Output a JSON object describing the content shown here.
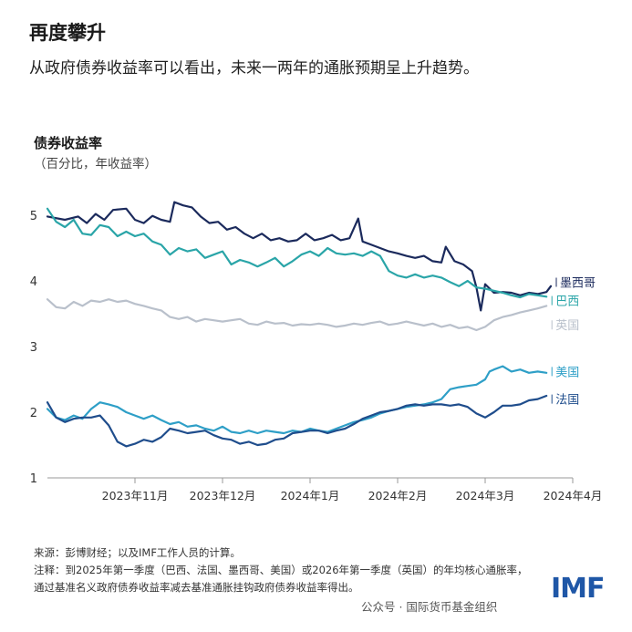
{
  "header": {
    "title": "再度攀升",
    "subtitle": "从政府债券收益率可以看出，未来一两年的通胀预期呈上升趋势。"
  },
  "panel": {
    "title": "债券收益率",
    "subtitle": "（百分比，年收益率）"
  },
  "footer": {
    "source": "来源：彭博财经；以及IMF工作人员的计算。",
    "note": "注释：到2025年第一季度（巴西、法国、墨西哥、美国）或2026年第一季度（英国）的年均核心通胀率，通过基准名义政府债券收益率减去基准通胀挂钩政府债券收益率得出。",
    "watermark": "公众号 · 国际货币基金组织",
    "logo": "IMF"
  },
  "chart_data": {
    "type": "line",
    "x_unit": "trading day index (Oct 2023 – Mar 2024)",
    "x_range": [
      0,
      120
    ],
    "ylim": [
      1,
      5
    ],
    "yticks": [
      1,
      2,
      3,
      4,
      5
    ],
    "xticks": [
      {
        "label": "2023年11月",
        "x": 20
      },
      {
        "label": "2023年12月",
        "x": 40
      },
      {
        "label": "2024年1月",
        "x": 60
      },
      {
        "label": "2024年2月",
        "x": 80
      },
      {
        "label": "2024年3月",
        "x": 100
      },
      {
        "label": "2024年4月",
        "x": 120
      }
    ],
    "grid": false,
    "series": [
      {
        "name": "墨西哥",
        "color": "#1b2a5c",
        "points": [
          [
            0,
            4.98
          ],
          [
            4,
            4.93
          ],
          [
            7,
            4.98
          ],
          [
            9,
            4.88
          ],
          [
            11,
            5.02
          ],
          [
            13,
            4.93
          ],
          [
            15,
            5.08
          ],
          [
            18,
            5.1
          ],
          [
            20,
            4.93
          ],
          [
            22,
            4.88
          ],
          [
            24,
            4.99
          ],
          [
            26,
            4.93
          ],
          [
            28,
            4.9
          ],
          [
            29,
            5.2
          ],
          [
            31,
            5.15
          ],
          [
            33,
            5.12
          ],
          [
            35,
            4.98
          ],
          [
            37,
            4.88
          ],
          [
            39,
            4.9
          ],
          [
            41,
            4.78
          ],
          [
            43,
            4.82
          ],
          [
            45,
            4.72
          ],
          [
            47,
            4.65
          ],
          [
            49,
            4.72
          ],
          [
            51,
            4.62
          ],
          [
            53,
            4.65
          ],
          [
            55,
            4.6
          ],
          [
            57,
            4.62
          ],
          [
            59,
            4.72
          ],
          [
            61,
            4.62
          ],
          [
            63,
            4.65
          ],
          [
            65,
            4.7
          ],
          [
            67,
            4.62
          ],
          [
            69,
            4.65
          ],
          [
            70,
            4.8
          ],
          [
            71,
            4.95
          ],
          [
            72,
            4.6
          ],
          [
            74,
            4.55
          ],
          [
            76,
            4.5
          ],
          [
            78,
            4.45
          ],
          [
            80,
            4.42
          ],
          [
            82,
            4.38
          ],
          [
            84,
            4.35
          ],
          [
            86,
            4.38
          ],
          [
            88,
            4.3
          ],
          [
            90,
            4.28
          ],
          [
            91,
            4.52
          ],
          [
            93,
            4.3
          ],
          [
            95,
            4.25
          ],
          [
            97,
            4.15
          ],
          [
            98,
            3.9
          ],
          [
            99,
            3.55
          ],
          [
            100,
            3.95
          ],
          [
            102,
            3.82
          ],
          [
            104,
            3.83
          ],
          [
            106,
            3.82
          ],
          [
            108,
            3.78
          ],
          [
            110,
            3.82
          ],
          [
            112,
            3.8
          ],
          [
            114,
            3.83
          ],
          [
            115,
            3.92
          ]
        ]
      },
      {
        "name": "巴西",
        "color": "#2aa5a8",
        "points": [
          [
            0,
            5.1
          ],
          [
            2,
            4.9
          ],
          [
            4,
            4.82
          ],
          [
            6,
            4.93
          ],
          [
            8,
            4.72
          ],
          [
            10,
            4.7
          ],
          [
            12,
            4.85
          ],
          [
            14,
            4.82
          ],
          [
            16,
            4.68
          ],
          [
            18,
            4.75
          ],
          [
            20,
            4.68
          ],
          [
            22,
            4.72
          ],
          [
            24,
            4.6
          ],
          [
            26,
            4.55
          ],
          [
            28,
            4.4
          ],
          [
            30,
            4.5
          ],
          [
            32,
            4.45
          ],
          [
            34,
            4.48
          ],
          [
            36,
            4.35
          ],
          [
            38,
            4.4
          ],
          [
            40,
            4.45
          ],
          [
            42,
            4.25
          ],
          [
            44,
            4.32
          ],
          [
            46,
            4.28
          ],
          [
            48,
            4.22
          ],
          [
            50,
            4.28
          ],
          [
            52,
            4.35
          ],
          [
            54,
            4.22
          ],
          [
            56,
            4.3
          ],
          [
            58,
            4.4
          ],
          [
            60,
            4.45
          ],
          [
            62,
            4.38
          ],
          [
            64,
            4.5
          ],
          [
            66,
            4.42
          ],
          [
            68,
            4.4
          ],
          [
            70,
            4.42
          ],
          [
            72,
            4.38
          ],
          [
            74,
            4.45
          ],
          [
            76,
            4.38
          ],
          [
            78,
            4.15
          ],
          [
            80,
            4.08
          ],
          [
            82,
            4.05
          ],
          [
            84,
            4.1
          ],
          [
            86,
            4.05
          ],
          [
            88,
            4.08
          ],
          [
            90,
            4.05
          ],
          [
            92,
            3.98
          ],
          [
            94,
            3.92
          ],
          [
            96,
            4.0
          ],
          [
            98,
            3.9
          ],
          [
            100,
            3.88
          ],
          [
            102,
            3.85
          ],
          [
            104,
            3.82
          ],
          [
            106,
            3.78
          ],
          [
            108,
            3.75
          ],
          [
            110,
            3.8
          ],
          [
            112,
            3.78
          ],
          [
            114,
            3.76
          ]
        ]
      },
      {
        "name": "英国",
        "color": "#b9c0cb",
        "points": [
          [
            0,
            3.72
          ],
          [
            2,
            3.6
          ],
          [
            4,
            3.58
          ],
          [
            6,
            3.68
          ],
          [
            8,
            3.62
          ],
          [
            10,
            3.7
          ],
          [
            12,
            3.68
          ],
          [
            14,
            3.72
          ],
          [
            16,
            3.68
          ],
          [
            18,
            3.7
          ],
          [
            20,
            3.65
          ],
          [
            22,
            3.62
          ],
          [
            24,
            3.58
          ],
          [
            26,
            3.55
          ],
          [
            28,
            3.45
          ],
          [
            30,
            3.42
          ],
          [
            32,
            3.45
          ],
          [
            34,
            3.38
          ],
          [
            36,
            3.42
          ],
          [
            38,
            3.4
          ],
          [
            40,
            3.38
          ],
          [
            42,
            3.4
          ],
          [
            44,
            3.42
          ],
          [
            46,
            3.35
          ],
          [
            48,
            3.33
          ],
          [
            50,
            3.38
          ],
          [
            52,
            3.35
          ],
          [
            54,
            3.36
          ],
          [
            56,
            3.32
          ],
          [
            58,
            3.34
          ],
          [
            60,
            3.33
          ],
          [
            62,
            3.35
          ],
          [
            64,
            3.33
          ],
          [
            66,
            3.3
          ],
          [
            68,
            3.32
          ],
          [
            70,
            3.35
          ],
          [
            72,
            3.33
          ],
          [
            74,
            3.36
          ],
          [
            76,
            3.38
          ],
          [
            78,
            3.33
          ],
          [
            80,
            3.35
          ],
          [
            82,
            3.38
          ],
          [
            84,
            3.35
          ],
          [
            86,
            3.32
          ],
          [
            88,
            3.35
          ],
          [
            90,
            3.3
          ],
          [
            92,
            3.33
          ],
          [
            94,
            3.28
          ],
          [
            96,
            3.3
          ],
          [
            98,
            3.25
          ],
          [
            100,
            3.3
          ],
          [
            102,
            3.4
          ],
          [
            104,
            3.45
          ],
          [
            106,
            3.48
          ],
          [
            108,
            3.52
          ],
          [
            110,
            3.55
          ],
          [
            112,
            3.58
          ],
          [
            114,
            3.62
          ]
        ]
      },
      {
        "name": "美国",
        "color": "#2e9fc7",
        "points": [
          [
            0,
            2.05
          ],
          [
            2,
            1.92
          ],
          [
            4,
            1.88
          ],
          [
            6,
            1.95
          ],
          [
            8,
            1.9
          ],
          [
            10,
            2.05
          ],
          [
            12,
            2.15
          ],
          [
            14,
            2.12
          ],
          [
            16,
            2.08
          ],
          [
            18,
            2.0
          ],
          [
            20,
            1.95
          ],
          [
            22,
            1.9
          ],
          [
            24,
            1.95
          ],
          [
            26,
            1.88
          ],
          [
            28,
            1.82
          ],
          [
            30,
            1.85
          ],
          [
            32,
            1.78
          ],
          [
            34,
            1.8
          ],
          [
            36,
            1.75
          ],
          [
            38,
            1.72
          ],
          [
            40,
            1.78
          ],
          [
            42,
            1.7
          ],
          [
            44,
            1.68
          ],
          [
            46,
            1.72
          ],
          [
            48,
            1.68
          ],
          [
            50,
            1.72
          ],
          [
            52,
            1.7
          ],
          [
            54,
            1.68
          ],
          [
            56,
            1.72
          ],
          [
            58,
            1.7
          ],
          [
            60,
            1.75
          ],
          [
            62,
            1.72
          ],
          [
            64,
            1.7
          ],
          [
            66,
            1.75
          ],
          [
            68,
            1.8
          ],
          [
            70,
            1.85
          ],
          [
            72,
            1.88
          ],
          [
            74,
            1.92
          ],
          [
            76,
            1.98
          ],
          [
            78,
            2.02
          ],
          [
            80,
            2.05
          ],
          [
            82,
            2.08
          ],
          [
            84,
            2.1
          ],
          [
            86,
            2.12
          ],
          [
            88,
            2.15
          ],
          [
            90,
            2.2
          ],
          [
            92,
            2.35
          ],
          [
            94,
            2.38
          ],
          [
            96,
            2.4
          ],
          [
            98,
            2.42
          ],
          [
            100,
            2.5
          ],
          [
            101,
            2.62
          ],
          [
            102,
            2.65
          ],
          [
            104,
            2.7
          ],
          [
            106,
            2.62
          ],
          [
            108,
            2.65
          ],
          [
            110,
            2.6
          ],
          [
            112,
            2.62
          ],
          [
            114,
            2.6
          ]
        ]
      },
      {
        "name": "法国",
        "color": "#1f4d8c",
        "points": [
          [
            0,
            2.15
          ],
          [
            2,
            1.92
          ],
          [
            4,
            1.85
          ],
          [
            6,
            1.9
          ],
          [
            8,
            1.92
          ],
          [
            10,
            1.92
          ],
          [
            12,
            1.95
          ],
          [
            14,
            1.8
          ],
          [
            16,
            1.55
          ],
          [
            18,
            1.48
          ],
          [
            20,
            1.52
          ],
          [
            22,
            1.58
          ],
          [
            24,
            1.55
          ],
          [
            26,
            1.62
          ],
          [
            28,
            1.75
          ],
          [
            30,
            1.72
          ],
          [
            32,
            1.68
          ],
          [
            34,
            1.7
          ],
          [
            36,
            1.72
          ],
          [
            38,
            1.65
          ],
          [
            40,
            1.6
          ],
          [
            42,
            1.58
          ],
          [
            44,
            1.52
          ],
          [
            46,
            1.55
          ],
          [
            48,
            1.5
          ],
          [
            50,
            1.52
          ],
          [
            52,
            1.58
          ],
          [
            54,
            1.6
          ],
          [
            56,
            1.68
          ],
          [
            58,
            1.7
          ],
          [
            60,
            1.72
          ],
          [
            62,
            1.72
          ],
          [
            64,
            1.68
          ],
          [
            66,
            1.72
          ],
          [
            68,
            1.75
          ],
          [
            70,
            1.82
          ],
          [
            72,
            1.9
          ],
          [
            74,
            1.95
          ],
          [
            76,
            2.0
          ],
          [
            78,
            2.02
          ],
          [
            80,
            2.05
          ],
          [
            82,
            2.1
          ],
          [
            84,
            2.12
          ],
          [
            86,
            2.1
          ],
          [
            88,
            2.12
          ],
          [
            90,
            2.12
          ],
          [
            92,
            2.1
          ],
          [
            94,
            2.12
          ],
          [
            96,
            2.08
          ],
          [
            98,
            1.98
          ],
          [
            100,
            1.92
          ],
          [
            102,
            2.0
          ],
          [
            104,
            2.1
          ],
          [
            106,
            2.1
          ],
          [
            108,
            2.12
          ],
          [
            110,
            2.18
          ],
          [
            112,
            2.2
          ],
          [
            114,
            2.25
          ]
        ]
      }
    ]
  }
}
